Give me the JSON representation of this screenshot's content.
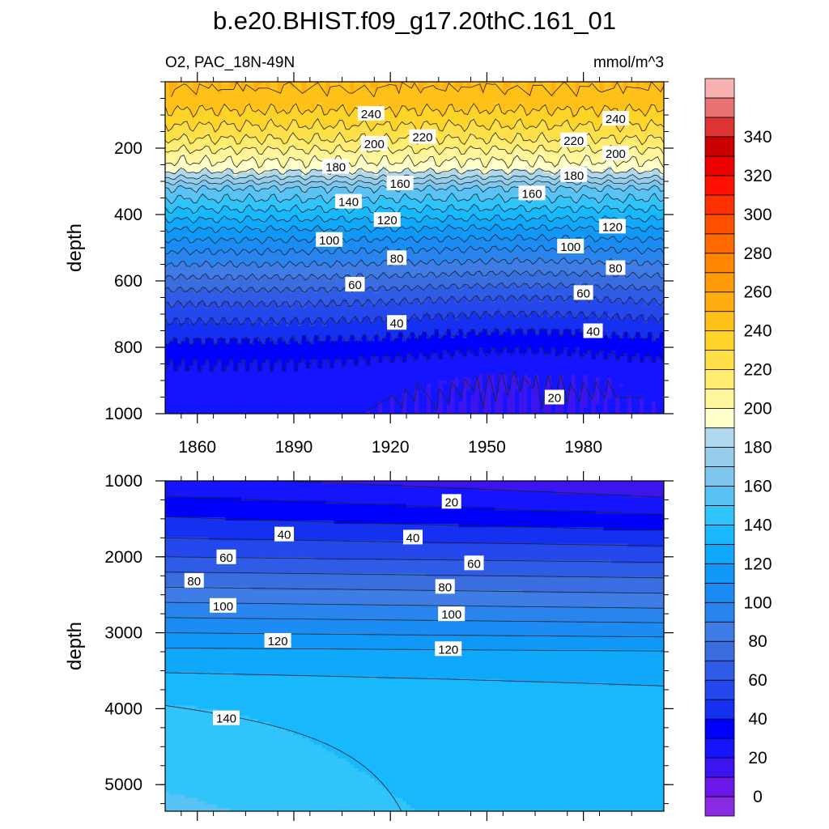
{
  "title": "b.e20.BHIST.f09_g17.20thC.161_01",
  "variable_label": "O2, PAC_18N-49N",
  "units_label": "mmol/m^3",
  "colors": {
    "levels": [
      -10,
      0,
      10,
      20,
      30,
      40,
      50,
      60,
      70,
      80,
      90,
      100,
      110,
      120,
      130,
      140,
      150,
      160,
      170,
      180,
      190,
      200,
      210,
      220,
      230,
      240,
      250,
      260,
      270,
      280,
      290,
      300,
      310,
      320,
      330,
      340,
      350,
      360
    ],
    "fills": [
      "#8a2be2",
      "#6a17e8",
      "#3c14f0",
      "#1414ff",
      "#0000ff",
      "#1530f0",
      "#2448ec",
      "#2f5ce6",
      "#3a6ee0",
      "#3f7ce6",
      "#2a84ee",
      "#1a8cf4",
      "#1098f8",
      "#10a8fb",
      "#18b8fd",
      "#30c4fb",
      "#5ac3f5",
      "#7ec8f0",
      "#95cdeb",
      "#b0d8ec",
      "#ffffcc",
      "#fff59a",
      "#ffec70",
      "#ffe048",
      "#ffd428",
      "#ffc018",
      "#ffae10",
      "#ff9a08",
      "#ff8800",
      "#ff6a00",
      "#ff5000",
      "#ff3000",
      "#ff1000",
      "#ee0000",
      "#cc0000",
      "#dd3333",
      "#e87272",
      "#f8b2b2"
    ]
  },
  "colorbar": {
    "labels": [
      "0",
      "20",
      "40",
      "60",
      "80",
      "100",
      "120",
      "140",
      "160",
      "180",
      "200",
      "220",
      "240",
      "260",
      "280",
      "300",
      "320",
      "340"
    ]
  },
  "chart_data": [
    {
      "type": "contour",
      "panel": "upper",
      "x_field": "year",
      "y_field": "depth",
      "ylabel": "depth",
      "xlim": [
        1850,
        2005
      ],
      "ylim": [
        1000,
        0
      ],
      "x_ticks": [
        1860,
        1890,
        1920,
        1950,
        1980
      ],
      "x_tick_labels": [
        "1860",
        "1890",
        "1920",
        "1950",
        "1980"
      ],
      "y_ticks": [
        200,
        400,
        600,
        800,
        1000
      ],
      "y_tick_labels": [
        "200",
        "400",
        "600",
        "800",
        "1000"
      ],
      "contour_interval": 10,
      "profile_depths": [
        0,
        60,
        100,
        140,
        180,
        220,
        260,
        280,
        320,
        360,
        400,
        450,
        500,
        550,
        600,
        650,
        700,
        750,
        800,
        850,
        900,
        1000
      ],
      "profile_values": [
        250,
        245,
        237,
        228,
        218,
        205,
        195,
        185,
        160,
        148,
        135,
        118,
        103,
        90,
        77,
        64,
        54,
        45,
        37,
        30,
        26,
        24
      ],
      "contour_labels": [
        {
          "text": "240",
          "x": 1914,
          "y": 95
        },
        {
          "text": "240",
          "x": 1990,
          "y": 110
        },
        {
          "text": "220",
          "x": 1930,
          "y": 165
        },
        {
          "text": "220",
          "x": 1977,
          "y": 175
        },
        {
          "text": "200",
          "x": 1915,
          "y": 185
        },
        {
          "text": "200",
          "x": 1990,
          "y": 215
        },
        {
          "text": "180",
          "x": 1903,
          "y": 255
        },
        {
          "text": "180",
          "x": 1977,
          "y": 280
        },
        {
          "text": "160",
          "x": 1923,
          "y": 305
        },
        {
          "text": "160",
          "x": 1964,
          "y": 335
        },
        {
          "text": "140",
          "x": 1907,
          "y": 360
        },
        {
          "text": "120",
          "x": 1919,
          "y": 415
        },
        {
          "text": "120",
          "x": 1989,
          "y": 435
        },
        {
          "text": "100",
          "x": 1901,
          "y": 475
        },
        {
          "text": "100",
          "x": 1976,
          "y": 495
        },
        {
          "text": "80",
          "x": 1922,
          "y": 530
        },
        {
          "text": "80",
          "x": 1990,
          "y": 560
        },
        {
          "text": "60",
          "x": 1909,
          "y": 610
        },
        {
          "text": "60",
          "x": 1980,
          "y": 635
        },
        {
          "text": "40",
          "x": 1922,
          "y": 725
        },
        {
          "text": "40",
          "x": 1983,
          "y": 750
        },
        {
          "text": "20",
          "x": 1971,
          "y": 950
        }
      ]
    },
    {
      "type": "contour",
      "panel": "lower",
      "x_field": "year",
      "y_field": "depth",
      "ylabel": "depth",
      "xlim": [
        1850,
        2005
      ],
      "ylim": [
        5350,
        1000
      ],
      "y_ticks": [
        1000,
        2000,
        3000,
        4000,
        5000
      ],
      "y_tick_labels": [
        "1000",
        "2000",
        "3000",
        "4000",
        "5000"
      ],
      "contour_interval": 10,
      "profile_depths": [
        1000,
        1300,
        1700,
        2000,
        2400,
        2800,
        3300,
        4000,
        5350
      ],
      "profile_values": [
        22,
        34,
        48,
        60,
        80,
        100,
        125,
        137,
        142
      ],
      "contour_labels": [
        {
          "text": "20",
          "x": 1939,
          "y": 1270
        },
        {
          "text": "40",
          "x": 1887,
          "y": 1700
        },
        {
          "text": "40",
          "x": 1927,
          "y": 1740
        },
        {
          "text": "60",
          "x": 1869,
          "y": 2000
        },
        {
          "text": "60",
          "x": 1946,
          "y": 2080
        },
        {
          "text": "80",
          "x": 1859,
          "y": 2310
        },
        {
          "text": "80",
          "x": 1937,
          "y": 2390
        },
        {
          "text": "100",
          "x": 1868,
          "y": 2640
        },
        {
          "text": "100",
          "x": 1939,
          "y": 2750
        },
        {
          "text": "120",
          "x": 1885,
          "y": 3100
        },
        {
          "text": "120",
          "x": 1938,
          "y": 3210
        },
        {
          "text": "140",
          "x": 1869,
          "y": 4120
        }
      ]
    }
  ]
}
